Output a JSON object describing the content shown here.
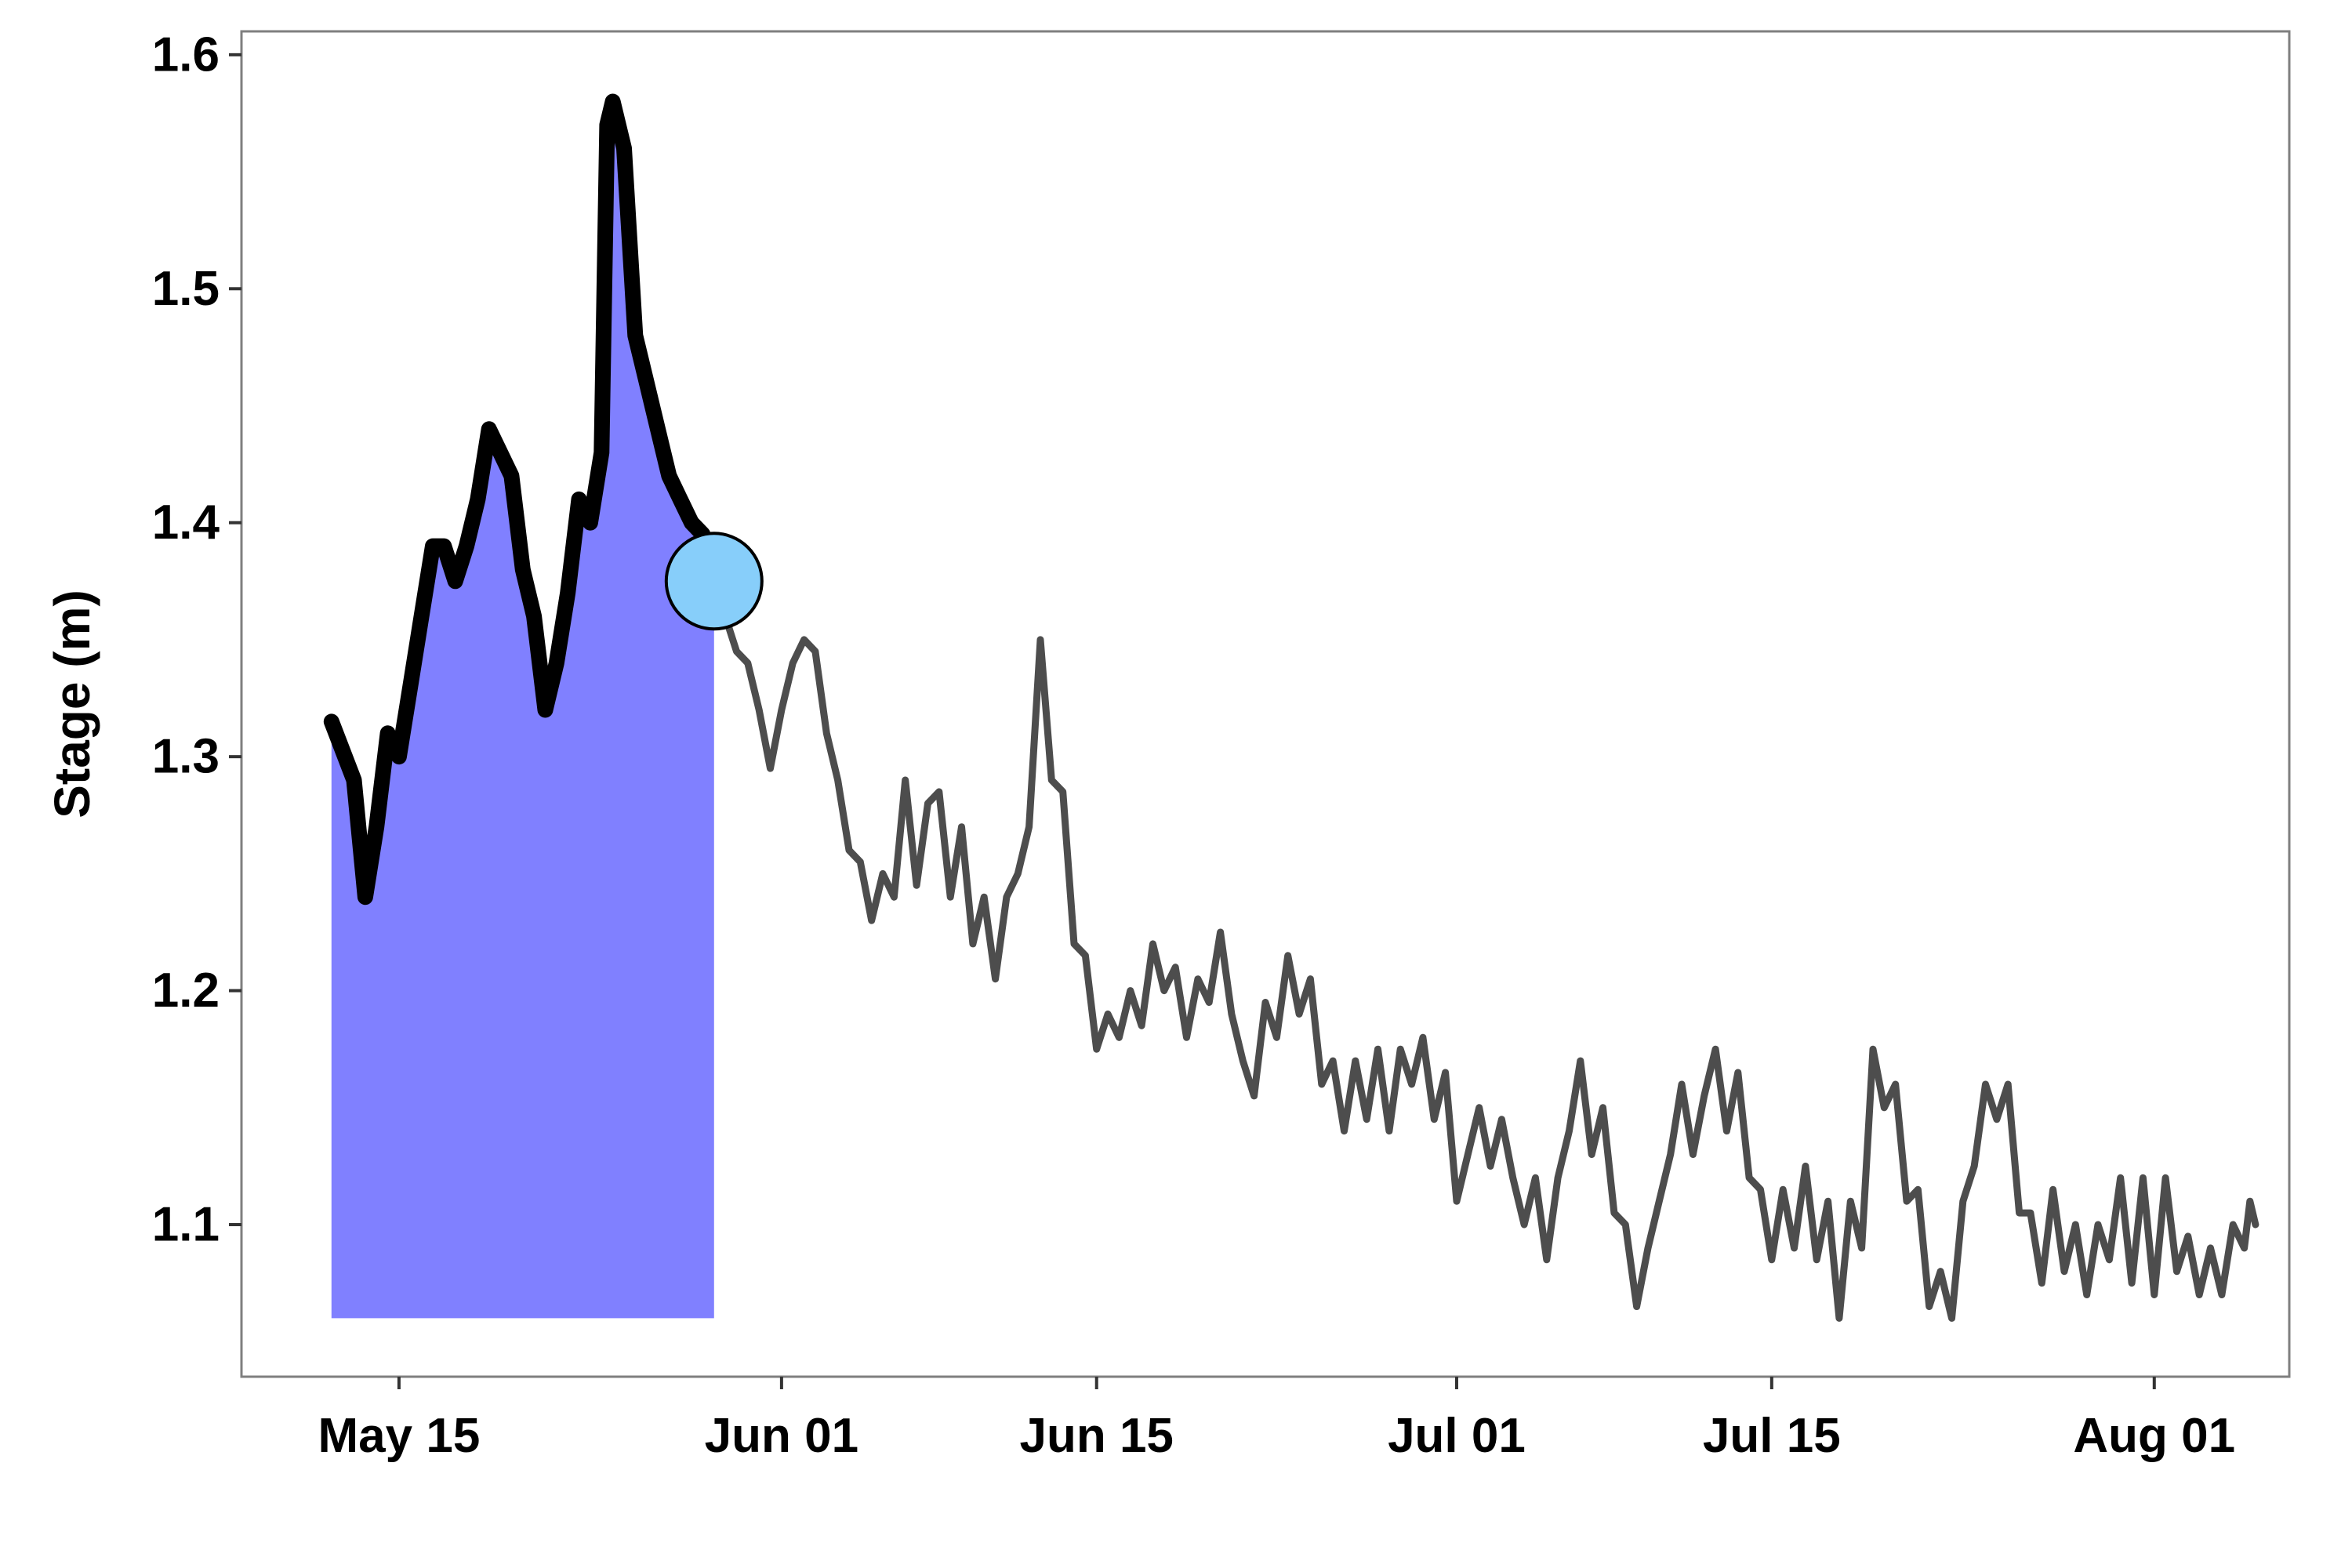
{
  "chart_data": {
    "type": "line",
    "title": "",
    "xlabel": "",
    "ylabel": "Stage (m)",
    "x_axis_type": "date",
    "xlim": [
      "2013-05-08",
      "2013-08-07"
    ],
    "ylim": [
      1.035,
      1.61
    ],
    "x_ticks": [
      {
        "date": "2013-05-15",
        "label": "May 15"
      },
      {
        "date": "2013-06-01",
        "label": "Jun 01"
      },
      {
        "date": "2013-06-15",
        "label": "Jun 15"
      },
      {
        "date": "2013-07-01",
        "label": "Jul 01"
      },
      {
        "date": "2013-07-15",
        "label": "Jul 15"
      },
      {
        "date": "2013-08-01",
        "label": "Aug 01"
      }
    ],
    "y_ticks": [
      {
        "value": 1.1,
        "label": "1.1"
      },
      {
        "value": 1.2,
        "label": "1.2"
      },
      {
        "value": 1.3,
        "label": "1.3"
      },
      {
        "value": 1.4,
        "label": "1.4"
      },
      {
        "value": 1.5,
        "label": "1.5"
      },
      {
        "value": 1.6,
        "label": "1.6"
      }
    ],
    "grid": false,
    "legend": "none",
    "shaded_region": {
      "x_start": "2013-05-12",
      "x_end": "2013-05-29",
      "y_bottom": 1.06,
      "color": "#8080ff"
    },
    "marker": {
      "x": "2013-05-29",
      "y": 1.375,
      "color": "#87cefa"
    },
    "series": [
      {
        "color": "#000000",
        "style": "thick",
        "points": [
          [
            "2013-05-12",
            1.315
          ],
          [
            "2013-05-13",
            1.29
          ],
          [
            "2013-05-13T12:00",
            1.24
          ],
          [
            "2013-05-14",
            1.27
          ],
          [
            "2013-05-14T12:00",
            1.31
          ],
          [
            "2013-05-15",
            1.3
          ],
          [
            "2013-05-15T12:00",
            1.33
          ],
          [
            "2013-05-16",
            1.36
          ],
          [
            "2013-05-16T12:00",
            1.39
          ],
          [
            "2013-05-17",
            1.39
          ],
          [
            "2013-05-17T12:00",
            1.375
          ],
          [
            "2013-05-18",
            1.39
          ],
          [
            "2013-05-18T12:00",
            1.41
          ],
          [
            "2013-05-19",
            1.44
          ],
          [
            "2013-05-19T12:00",
            1.43
          ],
          [
            "2013-05-20",
            1.42
          ],
          [
            "2013-05-20T12:00",
            1.38
          ],
          [
            "2013-05-21",
            1.36
          ],
          [
            "2013-05-21T12:00",
            1.32
          ],
          [
            "2013-05-22",
            1.34
          ],
          [
            "2013-05-22T12:00",
            1.37
          ],
          [
            "2013-05-23",
            1.41
          ],
          [
            "2013-05-23T12:00",
            1.4
          ],
          [
            "2013-05-24",
            1.43
          ],
          [
            "2013-05-24T06:00",
            1.57
          ],
          [
            "2013-05-24T12:00",
            1.58
          ],
          [
            "2013-05-25",
            1.56
          ],
          [
            "2013-05-25T12:00",
            1.48
          ],
          [
            "2013-05-26",
            1.46
          ],
          [
            "2013-05-26T12:00",
            1.44
          ],
          [
            "2013-05-27",
            1.42
          ],
          [
            "2013-05-27T12:00",
            1.41
          ],
          [
            "2013-05-28",
            1.4
          ],
          [
            "2013-05-28T12:00",
            1.395
          ],
          [
            "2013-05-29",
            1.375
          ]
        ]
      },
      {
        "color": "#4d4d4d",
        "style": "thin",
        "points": [
          [
            "2013-05-29",
            1.375
          ],
          [
            "2013-05-29T12:00",
            1.36
          ],
          [
            "2013-05-30",
            1.345
          ],
          [
            "2013-05-30T12:00",
            1.34
          ],
          [
            "2013-05-31",
            1.32
          ],
          [
            "2013-05-31T12:00",
            1.295
          ],
          [
            "2013-06-01",
            1.32
          ],
          [
            "2013-06-01T12:00",
            1.34
          ],
          [
            "2013-06-02",
            1.35
          ],
          [
            "2013-06-02T12:00",
            1.345
          ],
          [
            "2013-06-03",
            1.31
          ],
          [
            "2013-06-03T12:00",
            1.29
          ],
          [
            "2013-06-04",
            1.26
          ],
          [
            "2013-06-04T12:00",
            1.255
          ],
          [
            "2013-06-05",
            1.23
          ],
          [
            "2013-06-05T12:00",
            1.25
          ],
          [
            "2013-06-06",
            1.24
          ],
          [
            "2013-06-06T12:00",
            1.29
          ],
          [
            "2013-06-07",
            1.245
          ],
          [
            "2013-06-07T12:00",
            1.28
          ],
          [
            "2013-06-08",
            1.285
          ],
          [
            "2013-06-08T12:00",
            1.24
          ],
          [
            "2013-06-09",
            1.27
          ],
          [
            "2013-06-09T12:00",
            1.22
          ],
          [
            "2013-06-10",
            1.24
          ],
          [
            "2013-06-10T12:00",
            1.205
          ],
          [
            "2013-06-11",
            1.24
          ],
          [
            "2013-06-11T12:00",
            1.25
          ],
          [
            "2013-06-12",
            1.27
          ],
          [
            "2013-06-12T12:00",
            1.35
          ],
          [
            "2013-06-13",
            1.29
          ],
          [
            "2013-06-13T12:00",
            1.285
          ],
          [
            "2013-06-14",
            1.22
          ],
          [
            "2013-06-14T12:00",
            1.215
          ],
          [
            "2013-06-15",
            1.175
          ],
          [
            "2013-06-15T12:00",
            1.19
          ],
          [
            "2013-06-16",
            1.18
          ],
          [
            "2013-06-16T12:00",
            1.2
          ],
          [
            "2013-06-17",
            1.185
          ],
          [
            "2013-06-17T12:00",
            1.22
          ],
          [
            "2013-06-18",
            1.2
          ],
          [
            "2013-06-18T12:00",
            1.21
          ],
          [
            "2013-06-19",
            1.18
          ],
          [
            "2013-06-19T12:00",
            1.205
          ],
          [
            "2013-06-20",
            1.195
          ],
          [
            "2013-06-20T12:00",
            1.225
          ],
          [
            "2013-06-21",
            1.19
          ],
          [
            "2013-06-21T12:00",
            1.17
          ],
          [
            "2013-06-22",
            1.155
          ],
          [
            "2013-06-22T12:00",
            1.195
          ],
          [
            "2013-06-23",
            1.18
          ],
          [
            "2013-06-23T12:00",
            1.215
          ],
          [
            "2013-06-24",
            1.19
          ],
          [
            "2013-06-24T12:00",
            1.205
          ],
          [
            "2013-06-25",
            1.16
          ],
          [
            "2013-06-25T12:00",
            1.17
          ],
          [
            "2013-06-26",
            1.14
          ],
          [
            "2013-06-26T12:00",
            1.17
          ],
          [
            "2013-06-27",
            1.145
          ],
          [
            "2013-06-27T12:00",
            1.175
          ],
          [
            "2013-06-28",
            1.14
          ],
          [
            "2013-06-28T12:00",
            1.175
          ],
          [
            "2013-06-29",
            1.16
          ],
          [
            "2013-06-29T12:00",
            1.18
          ],
          [
            "2013-06-30",
            1.145
          ],
          [
            "2013-06-30T12:00",
            1.165
          ],
          [
            "2013-07-01",
            1.11
          ],
          [
            "2013-07-01T12:00",
            1.13
          ],
          [
            "2013-07-02",
            1.15
          ],
          [
            "2013-07-02T12:00",
            1.125
          ],
          [
            "2013-07-03",
            1.145
          ],
          [
            "2013-07-03T12:00",
            1.12
          ],
          [
            "2013-07-04",
            1.1
          ],
          [
            "2013-07-04T12:00",
            1.12
          ],
          [
            "2013-07-05",
            1.085
          ],
          [
            "2013-07-05T12:00",
            1.12
          ],
          [
            "2013-07-06",
            1.14
          ],
          [
            "2013-07-06T12:00",
            1.17
          ],
          [
            "2013-07-07",
            1.13
          ],
          [
            "2013-07-07T12:00",
            1.15
          ],
          [
            "2013-07-08",
            1.105
          ],
          [
            "2013-07-08T12:00",
            1.1
          ],
          [
            "2013-07-09",
            1.065
          ],
          [
            "2013-07-09T12:00",
            1.09
          ],
          [
            "2013-07-10",
            1.11
          ],
          [
            "2013-07-10T12:00",
            1.13
          ],
          [
            "2013-07-11",
            1.16
          ],
          [
            "2013-07-11T12:00",
            1.13
          ],
          [
            "2013-07-12",
            1.155
          ],
          [
            "2013-07-12T12:00",
            1.175
          ],
          [
            "2013-07-13",
            1.14
          ],
          [
            "2013-07-13T12:00",
            1.165
          ],
          [
            "2013-07-14",
            1.12
          ],
          [
            "2013-07-14T12:00",
            1.115
          ],
          [
            "2013-07-15",
            1.085
          ],
          [
            "2013-07-15T12:00",
            1.115
          ],
          [
            "2013-07-16",
            1.09
          ],
          [
            "2013-07-16T12:00",
            1.125
          ],
          [
            "2013-07-17",
            1.085
          ],
          [
            "2013-07-17T12:00",
            1.11
          ],
          [
            "2013-07-18",
            1.06
          ],
          [
            "2013-07-18T12:00",
            1.11
          ],
          [
            "2013-07-19",
            1.09
          ],
          [
            "2013-07-19T12:00",
            1.175
          ],
          [
            "2013-07-20",
            1.15
          ],
          [
            "2013-07-20T12:00",
            1.16
          ],
          [
            "2013-07-21",
            1.11
          ],
          [
            "2013-07-21T12:00",
            1.115
          ],
          [
            "2013-07-22",
            1.065
          ],
          [
            "2013-07-22T12:00",
            1.08
          ],
          [
            "2013-07-23",
            1.06
          ],
          [
            "2013-07-23T12:00",
            1.11
          ],
          [
            "2013-07-24",
            1.125
          ],
          [
            "2013-07-24T12:00",
            1.16
          ],
          [
            "2013-07-25",
            1.145
          ],
          [
            "2013-07-25T12:00",
            1.16
          ],
          [
            "2013-07-26",
            1.105
          ],
          [
            "2013-07-26T12:00",
            1.105
          ],
          [
            "2013-07-27",
            1.075
          ],
          [
            "2013-07-27T12:00",
            1.115
          ],
          [
            "2013-07-28",
            1.08
          ],
          [
            "2013-07-28T12:00",
            1.1
          ],
          [
            "2013-07-29",
            1.07
          ],
          [
            "2013-07-29T12:00",
            1.1
          ],
          [
            "2013-07-30",
            1.085
          ],
          [
            "2013-07-30T12:00",
            1.12
          ],
          [
            "2013-07-31",
            1.075
          ],
          [
            "2013-07-31T12:00",
            1.12
          ],
          [
            "2013-08-01",
            1.07
          ],
          [
            "2013-08-01T12:00",
            1.12
          ],
          [
            "2013-08-02",
            1.08
          ],
          [
            "2013-08-02T12:00",
            1.095
          ],
          [
            "2013-08-03",
            1.07
          ],
          [
            "2013-08-03T12:00",
            1.09
          ],
          [
            "2013-08-04",
            1.07
          ],
          [
            "2013-08-04T12:00",
            1.1
          ],
          [
            "2013-08-05",
            1.09
          ],
          [
            "2013-08-05T06:00",
            1.11
          ],
          [
            "2013-08-05T12:00",
            1.1
          ]
        ]
      }
    ]
  }
}
